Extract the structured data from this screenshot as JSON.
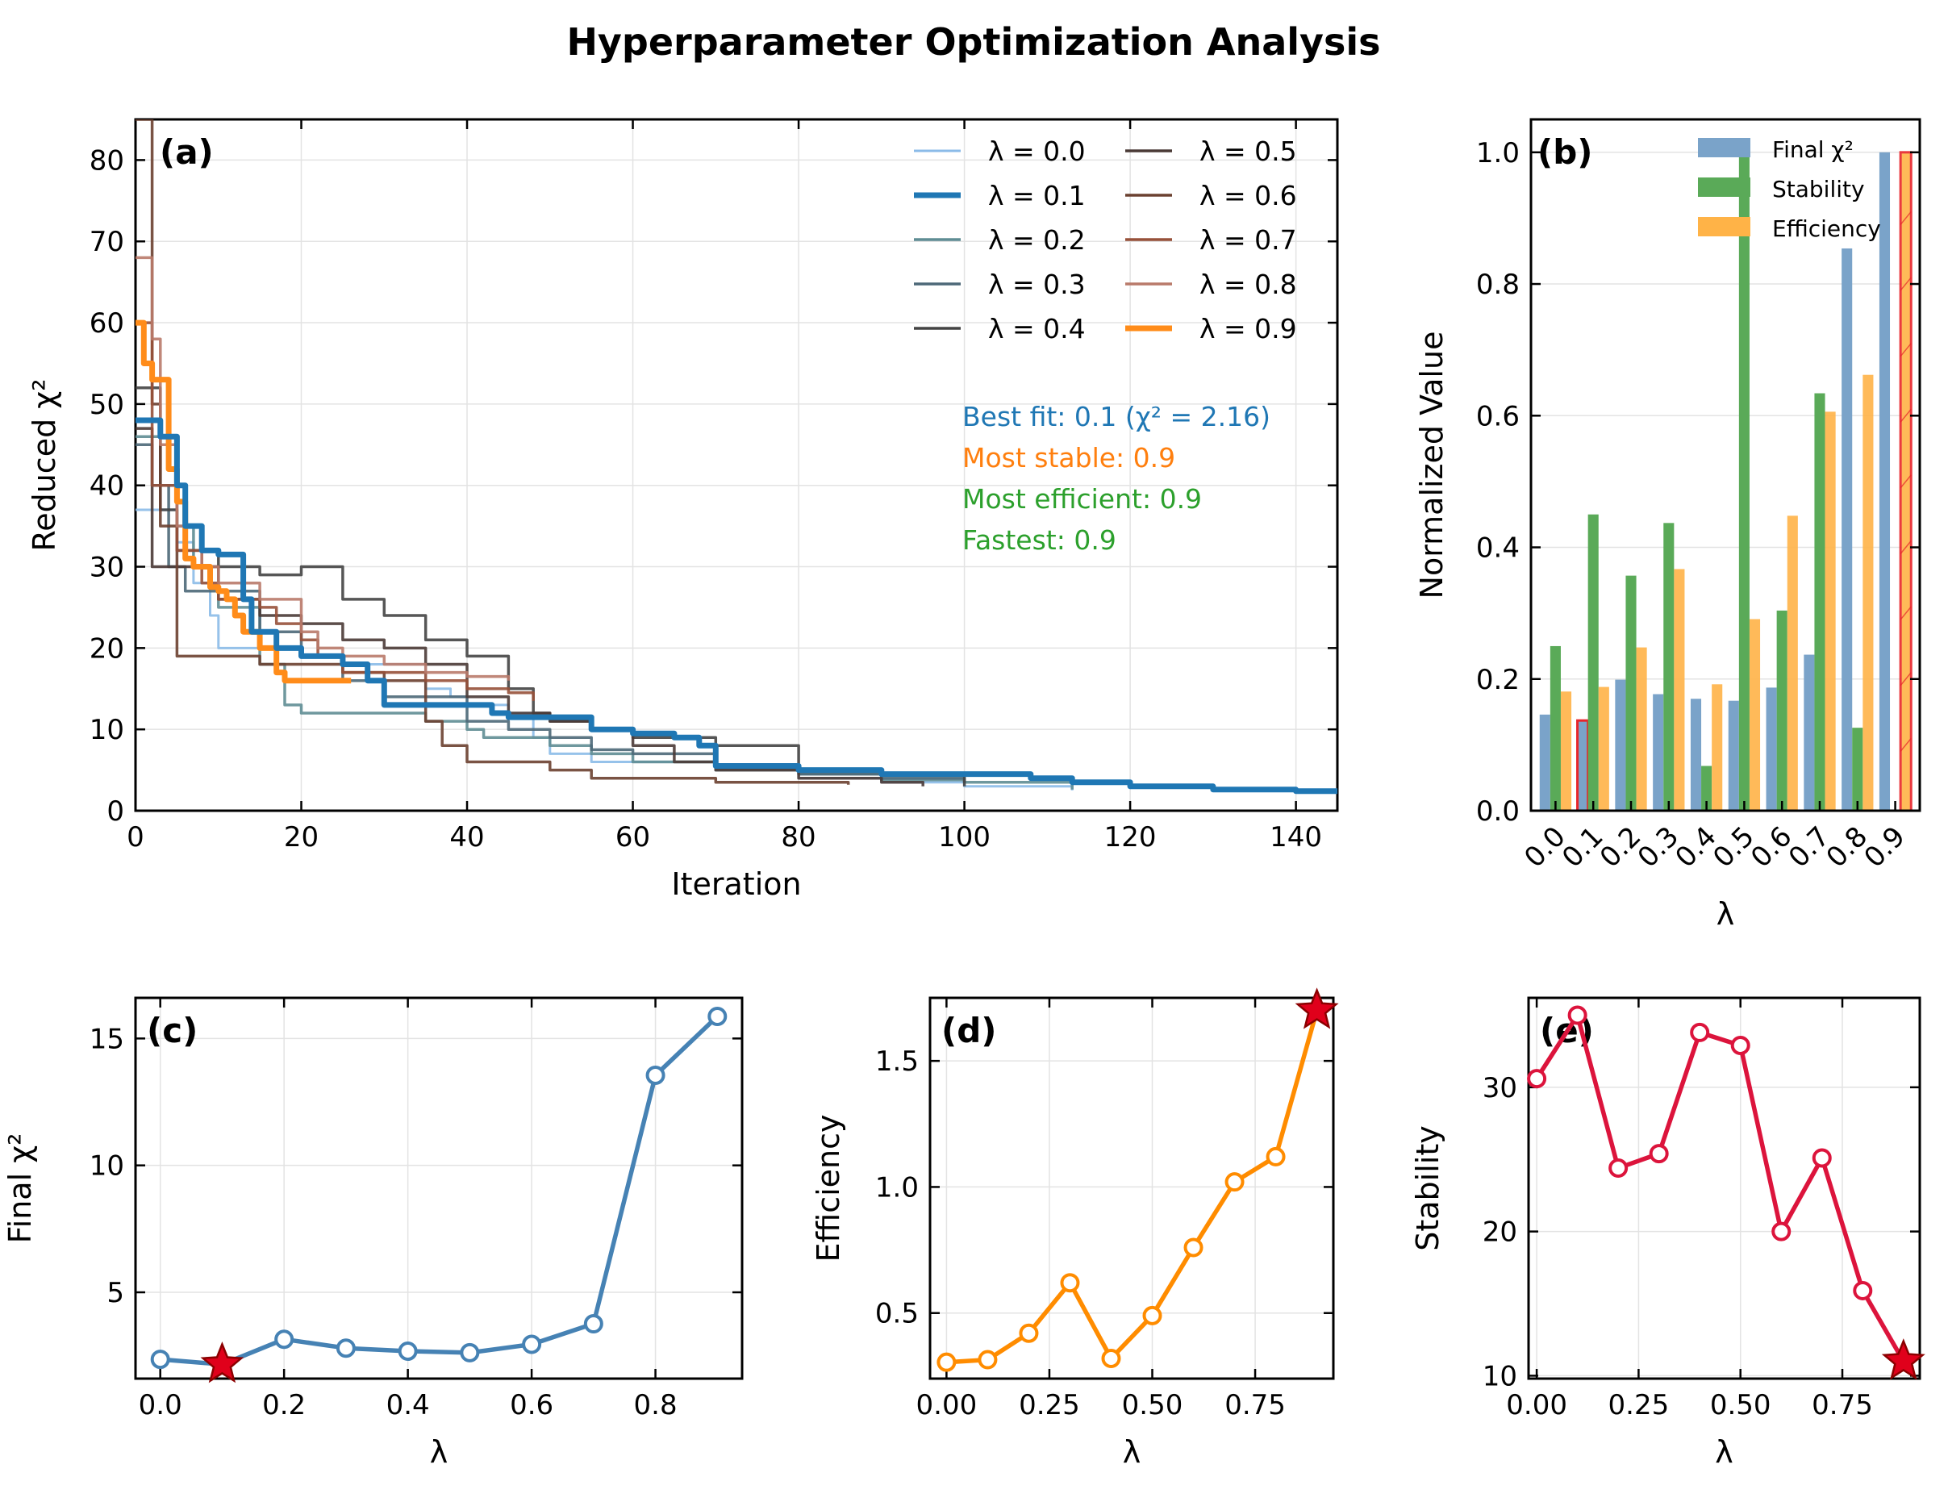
{
  "title": "Hyperparameter Optimization Analysis",
  "chart_data": [
    {
      "panel": "(a)",
      "type": "line",
      "xlabel": "Iteration",
      "ylabel": "Reduced χ²",
      "xlim": [
        0,
        145
      ],
      "ylim": [
        0,
        85
      ],
      "xticks": [
        0,
        20,
        40,
        60,
        80,
        100,
        120,
        140
      ],
      "yticks": [
        0,
        10,
        20,
        30,
        40,
        50,
        60,
        70,
        80
      ],
      "grid": true,
      "legend_position": "upper-right",
      "series": [
        {
          "name": "λ = 0.0",
          "color": "#8bbbe8",
          "width": 3,
          "points": [
            [
              0,
              37
            ],
            [
              3,
              37
            ],
            [
              5,
              33
            ],
            [
              7,
              28
            ],
            [
              9,
              24
            ],
            [
              10,
              20
            ],
            [
              15,
              20
            ],
            [
              20,
              19
            ],
            [
              25,
              18
            ],
            [
              30,
              18
            ],
            [
              35,
              15
            ],
            [
              38,
              14
            ],
            [
              40,
              13
            ],
            [
              45,
              12
            ],
            [
              48,
              9
            ],
            [
              50,
              7
            ],
            [
              55,
              6
            ],
            [
              62,
              6
            ],
            [
              70,
              5
            ],
            [
              80,
              4
            ],
            [
              90,
              3.5
            ],
            [
              100,
              3
            ],
            [
              113,
              2.5
            ]
          ]
        },
        {
          "name": "λ = 0.1",
          "color": "#1f77b4",
          "width": 7,
          "points": [
            [
              0,
              48
            ],
            [
              2,
              48
            ],
            [
              3,
              46
            ],
            [
              5,
              40
            ],
            [
              6,
              35
            ],
            [
              8,
              32
            ],
            [
              10,
              31.5
            ],
            [
              12,
              31.5
            ],
            [
              13,
              26
            ],
            [
              14,
              22
            ],
            [
              17,
              20
            ],
            [
              20,
              19
            ],
            [
              25,
              18
            ],
            [
              28,
              16
            ],
            [
              30,
              13
            ],
            [
              40,
              13
            ],
            [
              43,
              12
            ],
            [
              45,
              11.5
            ],
            [
              52,
              11.5
            ],
            [
              55,
              10
            ],
            [
              60,
              9.5
            ],
            [
              65,
              9
            ],
            [
              68,
              8
            ],
            [
              70,
              5.5
            ],
            [
              80,
              5
            ],
            [
              90,
              4.5
            ],
            [
              100,
              4.5
            ],
            [
              108,
              4
            ],
            [
              113,
              3.5
            ],
            [
              120,
              3
            ],
            [
              130,
              2.6
            ],
            [
              140,
              2.4
            ],
            [
              145,
              2.2
            ]
          ]
        },
        {
          "name": "λ = 0.2",
          "color": "#5f8d94",
          "width": 3.5,
          "points": [
            [
              0,
              46
            ],
            [
              3,
              40
            ],
            [
              5,
              35
            ],
            [
              7,
              30
            ],
            [
              10,
              25
            ],
            [
              15,
              18
            ],
            [
              18,
              13
            ],
            [
              20,
              12
            ],
            [
              30,
              12
            ],
            [
              35,
              11
            ],
            [
              40,
              10
            ],
            [
              42,
              9
            ],
            [
              45,
              9
            ],
            [
              50,
              8
            ],
            [
              55,
              7
            ],
            [
              60,
              6
            ],
            [
              70,
              5
            ],
            [
              80,
              4.5
            ],
            [
              90,
              3.8
            ],
            [
              100,
              3.5
            ],
            [
              113,
              2.6
            ]
          ]
        },
        {
          "name": "λ = 0.3",
          "color": "#4d6878",
          "width": 3.5,
          "points": [
            [
              0,
              45
            ],
            [
              2,
              40
            ],
            [
              4,
              30
            ],
            [
              6,
              27
            ],
            [
              10,
              27
            ],
            [
              15,
              22
            ],
            [
              20,
              19
            ],
            [
              25,
              16
            ],
            [
              30,
              14
            ],
            [
              40,
              11
            ],
            [
              45,
              10
            ],
            [
              50,
              9
            ],
            [
              55,
              7.5
            ],
            [
              60,
              7
            ],
            [
              70,
              5.5
            ],
            [
              80,
              4.5
            ],
            [
              90,
              4
            ],
            [
              100,
              3.4
            ]
          ]
        },
        {
          "name": "λ = 0.4",
          "color": "#444444",
          "width": 3.5,
          "points": [
            [
              0,
              52
            ],
            [
              3,
              37
            ],
            [
              5,
              32
            ],
            [
              10,
              30
            ],
            [
              15,
              29
            ],
            [
              20,
              30
            ],
            [
              25,
              26
            ],
            [
              30,
              24
            ],
            [
              35,
              21
            ],
            [
              40,
              19
            ],
            [
              45,
              15
            ],
            [
              48,
              12
            ],
            [
              50,
              11
            ],
            [
              55,
              10
            ],
            [
              60,
              9
            ],
            [
              70,
              8
            ],
            [
              80,
              5
            ],
            [
              90,
              4.5
            ],
            [
              100,
              3
            ]
          ]
        },
        {
          "name": "λ = 0.5",
          "color": "#4a3a36",
          "width": 3.5,
          "points": [
            [
              0,
              47
            ],
            [
              2,
              30
            ],
            [
              5,
              30
            ],
            [
              10,
              26
            ],
            [
              15,
              24
            ],
            [
              20,
              23
            ],
            [
              25,
              21
            ],
            [
              30,
              20
            ],
            [
              35,
              18
            ],
            [
              40,
              14
            ],
            [
              45,
              12
            ],
            [
              50,
              11
            ],
            [
              55,
              10
            ],
            [
              60,
              8
            ],
            [
              65,
              6
            ],
            [
              70,
              5
            ],
            [
              80,
              4
            ],
            [
              90,
              3.5
            ],
            [
              95,
              3
            ]
          ]
        },
        {
          "name": "λ = 0.6",
          "color": "#6b4030",
          "width": 3.5,
          "points": [
            [
              0,
              85
            ],
            [
              2,
              50
            ],
            [
              3,
              35
            ],
            [
              5,
              19
            ],
            [
              10,
              19
            ],
            [
              15,
              18
            ],
            [
              20,
              18
            ],
            [
              25,
              17
            ],
            [
              30,
              16
            ],
            [
              35,
              11
            ],
            [
              37,
              8
            ],
            [
              40,
              6
            ],
            [
              45,
              6
            ],
            [
              50,
              5
            ],
            [
              55,
              4
            ],
            [
              60,
              4
            ],
            [
              70,
              3.5
            ],
            [
              86,
              3.2
            ]
          ]
        },
        {
          "name": "λ = 0.7",
          "color": "#97513a",
          "width": 3.5,
          "points": [
            [
              0,
              60
            ],
            [
              2,
              40
            ],
            [
              5,
              32
            ],
            [
              8,
              28
            ],
            [
              10,
              26
            ],
            [
              15,
              25
            ],
            [
              17,
              23
            ],
            [
              20,
              21
            ],
            [
              22,
              19
            ],
            [
              25,
              17
            ],
            [
              30,
              17
            ],
            [
              35,
              16
            ],
            [
              40,
              15
            ],
            [
              45,
              14.5
            ],
            [
              48,
              13.5
            ]
          ]
        },
        {
          "name": "λ = 0.8",
          "color": "#b97a6a",
          "width": 3.5,
          "points": [
            [
              0,
              68
            ],
            [
              2,
              58
            ],
            [
              3,
              45
            ],
            [
              5,
              35
            ],
            [
              8,
              30
            ],
            [
              10,
              28
            ],
            [
              15,
              26
            ],
            [
              20,
              22
            ],
            [
              22,
              20
            ],
            [
              25,
              19
            ],
            [
              30,
              18
            ],
            [
              35,
              17
            ],
            [
              40,
              16.5
            ],
            [
              45,
              16
            ]
          ]
        },
        {
          "name": "λ = 0.9",
          "color": "#ff8c1a",
          "width": 7,
          "points": [
            [
              0,
              60
            ],
            [
              1,
              55
            ],
            [
              2,
              53
            ],
            [
              3,
              53
            ],
            [
              4,
              42
            ],
            [
              5,
              38
            ],
            [
              6,
              31
            ],
            [
              7,
              30
            ],
            [
              9,
              27.5
            ],
            [
              10,
              27
            ],
            [
              11,
              26
            ],
            [
              12,
              24
            ],
            [
              13,
              22
            ],
            [
              15,
              20
            ],
            [
              17,
              17
            ],
            [
              18,
              16
            ],
            [
              26,
              16
            ]
          ]
        }
      ],
      "annotations": [
        {
          "text": "Best fit: 0.1 (χ² = 2.16)",
          "color": "#1f77b4"
        },
        {
          "text": "Most stable: 0.9",
          "color": "#ff7f0e"
        },
        {
          "text": "Most efficient: 0.9",
          "color": "#2ca02c"
        },
        {
          "text": "Fastest: 0.9",
          "color": "#2ca02c"
        }
      ]
    },
    {
      "panel": "(b)",
      "type": "bar",
      "xlabel": "λ",
      "ylabel": "Normalized Value",
      "ylim": [
        0,
        1.05
      ],
      "yticks": [
        0.0,
        0.2,
        0.4,
        0.6,
        0.8,
        1.0
      ],
      "categories": [
        "0.0",
        "0.1",
        "0.2",
        "0.3",
        "0.4",
        "0.5",
        "0.6",
        "0.7",
        "0.8",
        "0.9"
      ],
      "legend_position": "upper-right",
      "series": [
        {
          "name": "Final χ²",
          "color": "#7aa3c9",
          "values": [
            0.146,
            0.137,
            0.199,
            0.177,
            0.17,
            0.167,
            0.187,
            0.237,
            0.854,
            1.0
          ]
        },
        {
          "name": "Stability",
          "color": "#5aaa58",
          "values": [
            0.25,
            0.45,
            0.357,
            0.437,
            0.068,
            1.0,
            0.304,
            0.634,
            0.126,
            0.0
          ]
        },
        {
          "name": "Efficiency",
          "color": "#ffb347",
          "values": [
            0.181,
            0.188,
            0.248,
            0.367,
            0.192,
            0.291,
            0.448,
            0.606,
            0.662,
            1.0
          ]
        }
      ],
      "highlight_color": "#e8252b"
    },
    {
      "panel": "(c)",
      "type": "line",
      "xlabel": "λ",
      "ylabel": "Final χ²",
      "xlim": [
        -0.04,
        0.94
      ],
      "ylim": [
        1.6,
        16.6
      ],
      "xticks": [
        0.0,
        0.2,
        0.4,
        0.6,
        0.8
      ],
      "xticklabels": [
        "0.0",
        "0.2",
        "0.4",
        "0.6",
        "0.8"
      ],
      "yticks": [
        5,
        10,
        15
      ],
      "color": "#4682b4",
      "x": [
        0.0,
        0.1,
        0.2,
        0.3,
        0.4,
        0.5,
        0.6,
        0.7,
        0.8,
        0.9
      ],
      "y": [
        2.36,
        2.16,
        3.15,
        2.8,
        2.68,
        2.62,
        2.95,
        3.76,
        13.55,
        15.87
      ],
      "star_index": 1
    },
    {
      "panel": "(d)",
      "type": "line",
      "xlabel": "λ",
      "ylabel": "Efficiency",
      "xlim": [
        -0.04,
        0.94
      ],
      "ylim": [
        0.24,
        1.75
      ],
      "xticks": [
        0.0,
        0.25,
        0.5,
        0.75
      ],
      "xticklabels": [
        "0.00",
        "0.25",
        "0.50",
        "0.75"
      ],
      "yticks": [
        0.5,
        1.0,
        1.5
      ],
      "color": "#ff8c00",
      "x": [
        0.0,
        0.1,
        0.2,
        0.3,
        0.4,
        0.5,
        0.6,
        0.7,
        0.8,
        0.9
      ],
      "y": [
        0.305,
        0.315,
        0.42,
        0.62,
        0.32,
        0.49,
        0.76,
        1.02,
        1.12,
        1.7
      ],
      "star_index": 9
    },
    {
      "panel": "(e)",
      "type": "line",
      "xlabel": "λ",
      "ylabel": "Stability",
      "xlim": [
        -0.02,
        0.94
      ],
      "ylim": [
        9.8,
        36.2
      ],
      "xticks": [
        0.0,
        0.25,
        0.5,
        0.75
      ],
      "xticklabels": [
        "0.00",
        "0.25",
        "0.50",
        "0.75"
      ],
      "yticks": [
        10,
        20,
        30
      ],
      "color": "#dc143c",
      "x": [
        0.0,
        0.1,
        0.2,
        0.3,
        0.4,
        0.5,
        0.6,
        0.7,
        0.8,
        0.9
      ],
      "y": [
        30.6,
        35.0,
        24.4,
        25.4,
        33.8,
        32.9,
        20.0,
        25.1,
        15.9,
        11.0
      ],
      "star_index": 9
    }
  ]
}
